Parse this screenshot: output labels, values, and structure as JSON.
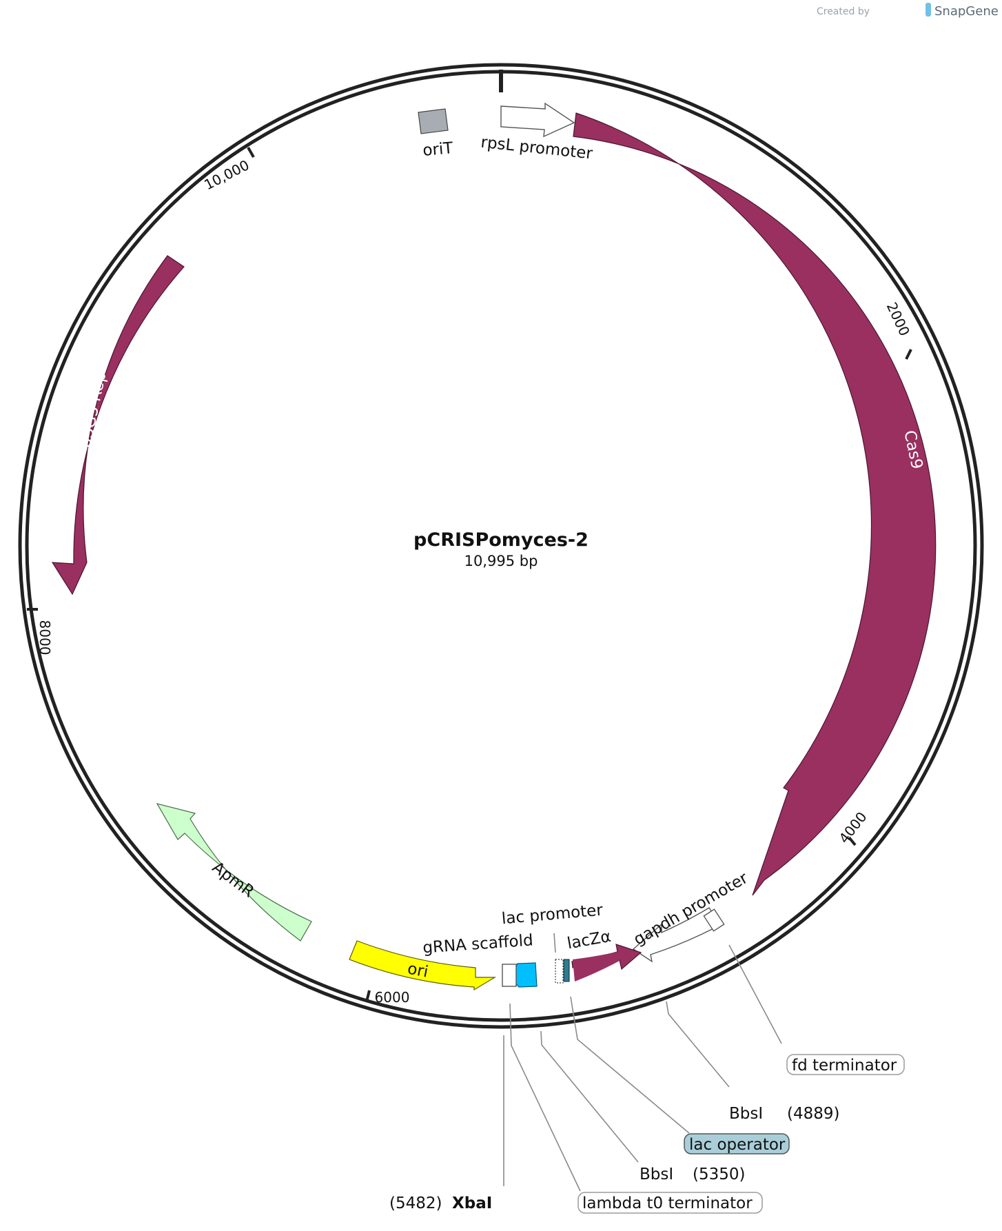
{
  "credit": {
    "created_by": "Created by",
    "brand": "SnapGene"
  },
  "plasmid": {
    "name": "pCRISPomyces-2",
    "size": "10,995 bp"
  },
  "colors": {
    "cas9": "#993060",
    "rep": "#993060",
    "lacz": "#993060",
    "ori": "#ffff00",
    "apmr": "#ccffcc",
    "orit": "#a8adb3",
    "gRNA_marker": "#00bfff",
    "lac_operator": "#a9ced9",
    "lac_operator_small": "#2f7d8f",
    "outline": "#ffffff"
  },
  "ticks": [
    {
      "label": "2000"
    },
    {
      "label": "4000"
    },
    {
      "label": "6000"
    },
    {
      "label": "8000"
    },
    {
      "label": "10,000"
    }
  ],
  "features": {
    "oriT": {
      "label": "oriT"
    },
    "rpsL_promoter": {
      "label": "rpsL promoter"
    },
    "cas9": {
      "label": "Cas9"
    },
    "pSG5_rep": {
      "label": "pSG5 Rep"
    },
    "apmR": {
      "label": "ApmR"
    },
    "ori": {
      "label": "ori"
    },
    "gRNA_scaffold": {
      "label": "gRNA scaffold"
    },
    "lac_promoter": {
      "label": "lac promoter"
    },
    "lacZa": {
      "label": "lacZα"
    },
    "gapdh_promoter": {
      "label": "gapdh promoter"
    }
  },
  "callouts": {
    "fd_terminator": {
      "label": "fd terminator"
    },
    "bbsI_4889": {
      "name": "BbsI",
      "position": "(4889)"
    },
    "lac_operator": {
      "label": "lac operator"
    },
    "bbsI_5350": {
      "name": "BbsI",
      "position": "(5350)"
    },
    "xbaI": {
      "position": "(5482)",
      "name": "XbaI"
    },
    "lambda_t0": {
      "label": "lambda t0 terminator"
    }
  }
}
